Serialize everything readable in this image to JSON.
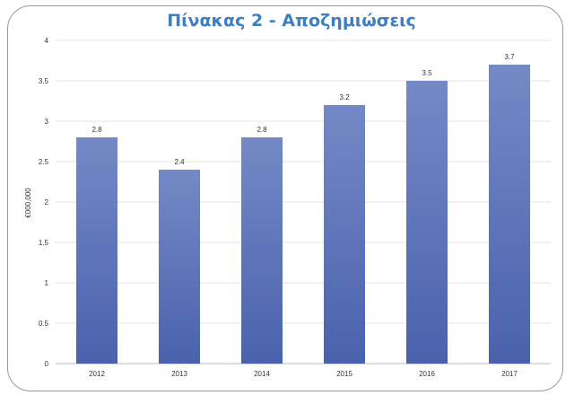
{
  "chart_data": {
    "type": "bar",
    "title": "Πίνακας 2 - Αποζημιώσεις",
    "ylabel": "€000,000",
    "xlabel": "",
    "categories": [
      "2012",
      "2013",
      "2014",
      "2015",
      "2016",
      "2017"
    ],
    "values": [
      2.8,
      2.4,
      2.8,
      3.2,
      3.5,
      3.7
    ],
    "value_labels": [
      "2.8",
      "2.4",
      "2.8",
      "3.2",
      "3.5",
      "3.7"
    ],
    "yticks": [
      "0",
      "0.5",
      "1",
      "1.5",
      "2",
      "2.5",
      "3",
      "3.5",
      "4"
    ],
    "ylim": [
      0,
      4
    ],
    "grid": true,
    "bar_color_top": "#7489c6",
    "bar_color_bottom": "#4a62ad"
  }
}
